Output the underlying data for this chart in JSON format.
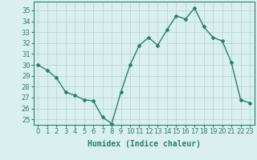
{
  "x": [
    0,
    1,
    2,
    3,
    4,
    5,
    6,
    7,
    8,
    9,
    10,
    11,
    12,
    13,
    14,
    15,
    16,
    17,
    18,
    19,
    20,
    21,
    22,
    23
  ],
  "y": [
    30,
    29.5,
    28.8,
    27.5,
    27.2,
    26.8,
    26.7,
    25.2,
    24.6,
    27.5,
    30.0,
    31.8,
    32.5,
    31.8,
    33.2,
    34.5,
    34.2,
    35.2,
    33.5,
    32.5,
    32.2,
    30.2,
    26.8,
    26.5
  ],
  "line_color": "#2d7d6e",
  "marker": "D",
  "markersize": 2,
  "linewidth": 1.0,
  "bg_color": "#d9f0ee",
  "grid_color": "#b8d8d4",
  "xlabel": "Humidex (Indice chaleur)",
  "xlabel_fontsize": 7,
  "tick_fontsize": 6,
  "ylim": [
    24.5,
    35.8
  ],
  "xlim": [
    -0.5,
    23.5
  ],
  "yticks": [
    25,
    26,
    27,
    28,
    29,
    30,
    31,
    32,
    33,
    34,
    35
  ],
  "xticks": [
    0,
    1,
    2,
    3,
    4,
    5,
    6,
    7,
    8,
    9,
    10,
    11,
    12,
    13,
    14,
    15,
    16,
    17,
    18,
    19,
    20,
    21,
    22,
    23
  ]
}
